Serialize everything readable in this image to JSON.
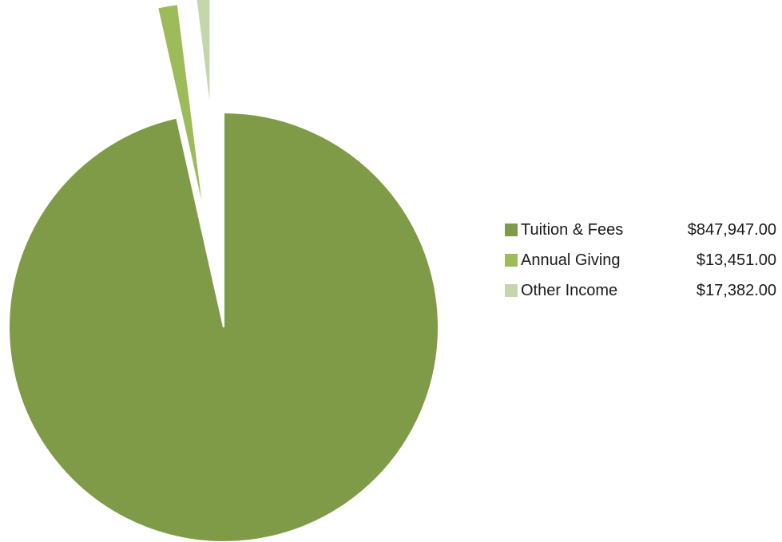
{
  "chart_data": {
    "type": "pie",
    "title": "",
    "exploded": true,
    "legend_position": "right",
    "slices": [
      {
        "label": "Tuition & Fees",
        "value": 847947.0,
        "value_label": "$847,947.00",
        "color": "#7f9b47"
      },
      {
        "label": "Annual Giving",
        "value": 13451.0,
        "value_label": "$13,451.00",
        "color": "#9dbb59"
      },
      {
        "label": "Other Income",
        "value": 17382.0,
        "value_label": "$17,382.00",
        "color": "#c5d6ac"
      }
    ]
  }
}
